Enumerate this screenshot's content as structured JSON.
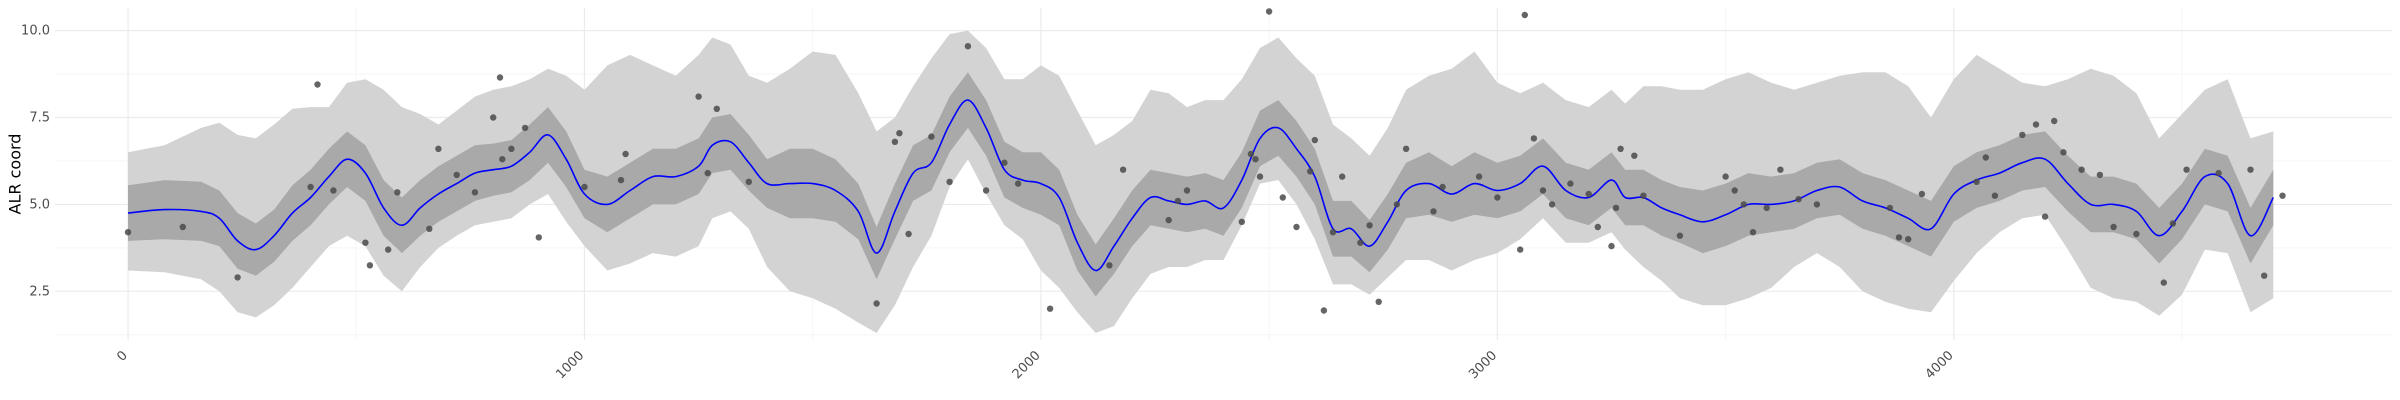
{
  "chart_data": {
    "type": "line",
    "title": "",
    "xlabel": "",
    "ylabel": "ALR coord",
    "xlim": [
      -160,
      4960
    ],
    "ylim": [
      1.1,
      10.65
    ],
    "grid": true,
    "x_ticks": [
      0,
      1000,
      2000,
      3000,
      4000
    ],
    "x_tick_labels": [
      "0",
      "1000",
      "2000",
      "3000",
      "4000"
    ],
    "x_tick_rotation": 45,
    "y_ticks": [
      2.5,
      5.0,
      7.5,
      10.0
    ],
    "y_tick_labels": [
      "2.5",
      "5.0",
      "7.5",
      "10.0"
    ],
    "colors": {
      "mean_line": "#0000ff",
      "inner_band": "#a9a9a9",
      "outer_band": "#d3d3d3",
      "points": "#4a4a4a",
      "grid_major": "#ebebeb",
      "grid_minor": "#f5f5f5"
    },
    "series": [
      {
        "kind": "line",
        "x": [
          0,
          80,
          160,
          200,
          240,
          280,
          320,
          360,
          400,
          440,
          480,
          520,
          560,
          600,
          640,
          680,
          720,
          760,
          800,
          840,
          880,
          920,
          960,
          1000,
          1050,
          1100,
          1150,
          1200,
          1250,
          1280,
          1320,
          1360,
          1400,
          1450,
          1500,
          1550,
          1600,
          1640,
          1680,
          1720,
          1760,
          1800,
          1840,
          1880,
          1920,
          1960,
          2000,
          2040,
          2080,
          2120,
          2160,
          2200,
          2240,
          2280,
          2320,
          2360,
          2400,
          2440,
          2480,
          2520,
          2560,
          2600,
          2640,
          2680,
          2720,
          2760,
          2800,
          2850,
          2900,
          2950,
          3000,
          3050,
          3100,
          3150,
          3200,
          3250,
          3280,
          3320,
          3360,
          3400,
          3450,
          3500,
          3550,
          3600,
          3650,
          3700,
          3750,
          3800,
          3850,
          3900,
          3950,
          4000,
          4050,
          4100,
          4150,
          4200,
          4250,
          4300,
          4350,
          4400,
          4450,
          4500,
          4550,
          4600,
          4650,
          4700
        ],
        "y": [
          4.75,
          4.85,
          4.8,
          4.6,
          3.95,
          3.7,
          4.1,
          4.75,
          5.2,
          5.8,
          6.3,
          5.9,
          4.9,
          4.4,
          4.9,
          5.3,
          5.6,
          5.9,
          6.0,
          6.1,
          6.5,
          7.0,
          6.3,
          5.3,
          5.0,
          5.4,
          5.8,
          5.8,
          6.1,
          6.7,
          6.8,
          6.2,
          5.6,
          5.6,
          5.6,
          5.4,
          4.8,
          3.6,
          4.8,
          5.9,
          6.2,
          7.3,
          8.0,
          7.2,
          6.0,
          5.7,
          5.6,
          5.2,
          3.9,
          3.1,
          3.8,
          4.6,
          5.2,
          5.1,
          5.0,
          5.1,
          4.9,
          5.7,
          6.9,
          7.2,
          6.6,
          5.8,
          4.3,
          4.3,
          3.8,
          4.5,
          5.4,
          5.6,
          5.3,
          5.6,
          5.4,
          5.6,
          6.1,
          5.4,
          5.2,
          5.7,
          5.2,
          5.2,
          4.9,
          4.7,
          4.5,
          4.7,
          5.0,
          5.0,
          5.1,
          5.4,
          5.5,
          5.1,
          4.9,
          4.6,
          4.3,
          5.3,
          5.7,
          5.9,
          6.2,
          6.3,
          5.6,
          5.0,
          5.0,
          4.8,
          4.1,
          4.8,
          5.8,
          5.6,
          4.1,
          5.2
        ]
      },
      {
        "kind": "ribbon",
        "name": "inner_band",
        "x": [
          0,
          80,
          160,
          200,
          240,
          280,
          320,
          360,
          400,
          440,
          480,
          520,
          560,
          600,
          640,
          680,
          720,
          760,
          800,
          840,
          880,
          920,
          960,
          1000,
          1050,
          1100,
          1150,
          1200,
          1250,
          1280,
          1320,
          1360,
          1400,
          1450,
          1500,
          1550,
          1600,
          1640,
          1680,
          1720,
          1760,
          1800,
          1840,
          1880,
          1920,
          1960,
          2000,
          2040,
          2080,
          2120,
          2160,
          2200,
          2240,
          2280,
          2320,
          2360,
          2400,
          2440,
          2480,
          2520,
          2560,
          2600,
          2640,
          2680,
          2720,
          2760,
          2800,
          2850,
          2900,
          2950,
          3000,
          3050,
          3100,
          3150,
          3200,
          3250,
          3280,
          3320,
          3360,
          3400,
          3450,
          3500,
          3550,
          3600,
          3650,
          3700,
          3750,
          3800,
          3850,
          3900,
          3950,
          4000,
          4050,
          4100,
          4150,
          4200,
          4250,
          4300,
          4350,
          4400,
          4450,
          4500,
          4550,
          4600,
          4650,
          4700
        ],
        "ymin": [
          3.95,
          4.0,
          3.95,
          3.8,
          3.15,
          2.95,
          3.35,
          3.95,
          4.4,
          5.0,
          5.5,
          5.1,
          4.1,
          3.6,
          4.1,
          4.5,
          4.8,
          5.1,
          5.25,
          5.35,
          5.7,
          6.2,
          5.5,
          4.6,
          4.2,
          4.6,
          5.0,
          5.0,
          5.3,
          5.9,
          6.0,
          5.4,
          4.9,
          4.6,
          4.6,
          4.5,
          4.0,
          2.85,
          4.0,
          5.1,
          5.4,
          6.5,
          7.2,
          6.4,
          5.2,
          4.9,
          4.7,
          4.4,
          3.1,
          2.35,
          3.0,
          3.8,
          4.4,
          4.3,
          4.2,
          4.3,
          4.1,
          4.9,
          6.1,
          6.4,
          5.8,
          5.0,
          3.5,
          3.5,
          3.05,
          3.7,
          4.6,
          4.7,
          4.5,
          4.7,
          4.6,
          4.8,
          5.3,
          4.6,
          4.4,
          4.9,
          4.4,
          4.4,
          4.1,
          3.9,
          3.6,
          3.8,
          4.1,
          4.2,
          4.3,
          4.6,
          4.7,
          4.3,
          4.1,
          3.8,
          3.5,
          4.5,
          4.9,
          5.1,
          5.4,
          5.5,
          4.8,
          4.2,
          4.2,
          4.0,
          3.3,
          4.0,
          5.0,
          4.8,
          3.3,
          4.4
        ],
        "ymax": [
          5.55,
          5.7,
          5.65,
          5.4,
          4.75,
          4.45,
          4.85,
          5.55,
          6.0,
          6.6,
          7.1,
          6.7,
          5.7,
          5.2,
          5.7,
          6.1,
          6.4,
          6.7,
          6.75,
          6.85,
          7.3,
          7.8,
          7.1,
          6.0,
          5.8,
          6.2,
          6.6,
          6.6,
          6.9,
          7.5,
          7.6,
          7.0,
          6.3,
          6.6,
          6.6,
          6.3,
          5.6,
          4.35,
          5.6,
          6.7,
          7.0,
          8.1,
          8.8,
          8.0,
          6.8,
          6.5,
          6.5,
          6.0,
          4.7,
          3.85,
          4.6,
          5.4,
          6.0,
          5.9,
          5.8,
          5.9,
          5.7,
          6.5,
          7.7,
          8.0,
          7.4,
          6.6,
          5.1,
          5.1,
          4.55,
          5.3,
          6.2,
          6.5,
          6.1,
          6.5,
          6.2,
          6.4,
          6.9,
          6.2,
          6.0,
          6.5,
          6.0,
          6.0,
          5.7,
          5.5,
          5.4,
          5.6,
          5.9,
          5.8,
          5.9,
          6.2,
          6.3,
          5.9,
          5.7,
          5.4,
          5.1,
          6.1,
          6.5,
          6.7,
          7.0,
          7.1,
          6.4,
          5.8,
          5.8,
          5.6,
          4.9,
          5.6,
          6.6,
          6.4,
          4.9,
          6.0
        ]
      },
      {
        "kind": "ribbon",
        "name": "outer_band",
        "x": [
          0,
          80,
          160,
          200,
          240,
          280,
          320,
          360,
          400,
          440,
          480,
          520,
          560,
          600,
          640,
          680,
          720,
          760,
          800,
          840,
          880,
          920,
          960,
          1000,
          1050,
          1100,
          1150,
          1200,
          1250,
          1280,
          1320,
          1360,
          1400,
          1450,
          1500,
          1550,
          1600,
          1640,
          1680,
          1720,
          1760,
          1800,
          1840,
          1880,
          1920,
          1960,
          2000,
          2040,
          2080,
          2120,
          2160,
          2200,
          2240,
          2280,
          2320,
          2360,
          2400,
          2440,
          2480,
          2520,
          2560,
          2600,
          2640,
          2680,
          2720,
          2760,
          2800,
          2850,
          2900,
          2950,
          3000,
          3050,
          3100,
          3150,
          3200,
          3250,
          3280,
          3320,
          3360,
          3400,
          3450,
          3500,
          3550,
          3600,
          3650,
          3700,
          3750,
          3800,
          3850,
          3900,
          3950,
          4000,
          4050,
          4100,
          4150,
          4200,
          4250,
          4300,
          4350,
          4400,
          4450,
          4500,
          4550,
          4600,
          4650,
          4700
        ],
        "ymin": [
          3.1,
          3.05,
          2.85,
          2.5,
          1.9,
          1.75,
          2.1,
          2.6,
          3.2,
          3.8,
          4.1,
          3.8,
          2.95,
          2.5,
          3.2,
          3.75,
          4.1,
          4.4,
          4.5,
          4.6,
          5.0,
          5.3,
          4.5,
          3.8,
          3.1,
          3.3,
          3.6,
          3.5,
          3.8,
          4.6,
          4.8,
          4.3,
          3.2,
          2.5,
          2.3,
          2.0,
          1.6,
          1.3,
          2.1,
          3.2,
          4.1,
          5.5,
          6.3,
          5.3,
          4.4,
          4.0,
          3.1,
          2.6,
          1.9,
          1.3,
          1.5,
          2.3,
          3.0,
          3.2,
          3.2,
          3.4,
          3.4,
          4.4,
          5.6,
          5.7,
          5.0,
          4.0,
          2.7,
          2.7,
          2.4,
          2.9,
          3.4,
          3.4,
          3.1,
          3.4,
          3.6,
          4.0,
          4.6,
          3.9,
          3.9,
          4.2,
          3.7,
          3.2,
          2.8,
          2.3,
          2.1,
          2.1,
          2.3,
          2.6,
          3.2,
          3.6,
          3.2,
          2.5,
          2.2,
          2.0,
          1.9,
          2.8,
          3.6,
          4.2,
          4.6,
          4.7,
          3.7,
          2.6,
          2.3,
          2.2,
          1.8,
          2.4,
          3.7,
          3.6,
          1.9,
          2.3
        ],
        "ymax": [
          6.5,
          6.7,
          7.2,
          7.35,
          7.0,
          6.9,
          7.3,
          7.75,
          7.8,
          7.8,
          8.5,
          8.6,
          8.3,
          7.8,
          7.6,
          7.3,
          7.7,
          8.1,
          8.3,
          8.4,
          8.6,
          8.9,
          8.7,
          8.3,
          9.0,
          9.3,
          9.0,
          8.7,
          9.3,
          9.8,
          9.6,
          8.7,
          8.5,
          8.9,
          9.4,
          9.3,
          8.2,
          7.1,
          7.5,
          8.4,
          9.2,
          9.9,
          10.0,
          9.5,
          8.6,
          8.6,
          9.0,
          8.7,
          7.7,
          6.7,
          7.0,
          7.4,
          8.3,
          8.2,
          7.8,
          8.0,
          8.0,
          8.6,
          9.5,
          9.8,
          9.2,
          8.7,
          7.3,
          6.9,
          6.4,
          7.2,
          8.3,
          8.7,
          8.9,
          9.4,
          8.5,
          8.2,
          8.5,
          8.0,
          7.8,
          8.3,
          7.9,
          8.4,
          8.4,
          8.3,
          8.3,
          8.6,
          8.8,
          8.5,
          8.3,
          8.5,
          8.7,
          8.8,
          8.8,
          8.4,
          7.5,
          8.6,
          9.3,
          8.9,
          8.5,
          8.4,
          8.6,
          8.9,
          8.7,
          8.2,
          6.9,
          7.6,
          8.3,
          8.6,
          6.9,
          7.1
        ]
      },
      {
        "kind": "scatter",
        "x": [
          0,
          120,
          240,
          400,
          415,
          450,
          520,
          530,
          570,
          590,
          660,
          680,
          720,
          760,
          800,
          815,
          820,
          840,
          870,
          900,
          1000,
          1080,
          1090,
          1250,
          1270,
          1290,
          1360,
          1640,
          1680,
          1690,
          1710,
          1760,
          1800,
          1840,
          1880,
          1920,
          1950,
          2020,
          2150,
          2180,
          2280,
          2300,
          2320,
          2440,
          2460,
          2470,
          2480,
          2500,
          2530,
          2560,
          2590,
          2600,
          2620,
          2640,
          2660,
          2700,
          2720,
          2740,
          2780,
          2800,
          2860,
          2880,
          2960,
          3000,
          3050,
          3060,
          3080,
          3100,
          3120,
          3160,
          3200,
          3220,
          3250,
          3260,
          3270,
          3300,
          3320,
          3400,
          3500,
          3520,
          3540,
          3560,
          3590,
          3620,
          3660,
          3700,
          3860,
          3880,
          3900,
          3930,
          4050,
          4070,
          4090,
          4150,
          4180,
          4200,
          4220,
          4240,
          4280,
          4320,
          4350,
          4400,
          4460,
          4480,
          4510,
          4580,
          4650,
          4680,
          4720
        ],
        "y": [
          4.2,
          4.35,
          2.9,
          5.5,
          8.45,
          5.4,
          3.9,
          3.25,
          3.7,
          5.35,
          4.3,
          6.6,
          5.85,
          5.35,
          7.5,
          8.65,
          6.3,
          6.6,
          7.2,
          4.05,
          5.5,
          5.7,
          6.45,
          8.1,
          5.9,
          7.75,
          5.65,
          2.15,
          6.8,
          7.05,
          4.15,
          6.95,
          5.65,
          9.55,
          5.4,
          6.2,
          5.6,
          2.0,
          3.25,
          6.0,
          4.55,
          5.1,
          5.4,
          4.5,
          6.45,
          6.3,
          5.8,
          10.55,
          5.2,
          4.35,
          5.95,
          6.85,
          1.95,
          4.2,
          5.8,
          3.9,
          4.4,
          2.2,
          5.0,
          6.6,
          4.8,
          5.5,
          5.8,
          5.2,
          3.7,
          10.45,
          6.9,
          5.4,
          5.0,
          5.6,
          5.3,
          4.35,
          3.8,
          4.9,
          6.6,
          6.4,
          5.25,
          4.1,
          5.8,
          5.4,
          5.0,
          4.2,
          4.9,
          6.0,
          5.15,
          5.0,
          4.9,
          4.05,
          4.0,
          5.3,
          5.65,
          6.35,
          5.25,
          7.0,
          7.3,
          4.65,
          7.4,
          6.5,
          6.0,
          5.85,
          4.35,
          4.15,
          2.75,
          4.45,
          6.0,
          5.9,
          6.0,
          2.95,
          5.25
        ]
      }
    ]
  }
}
